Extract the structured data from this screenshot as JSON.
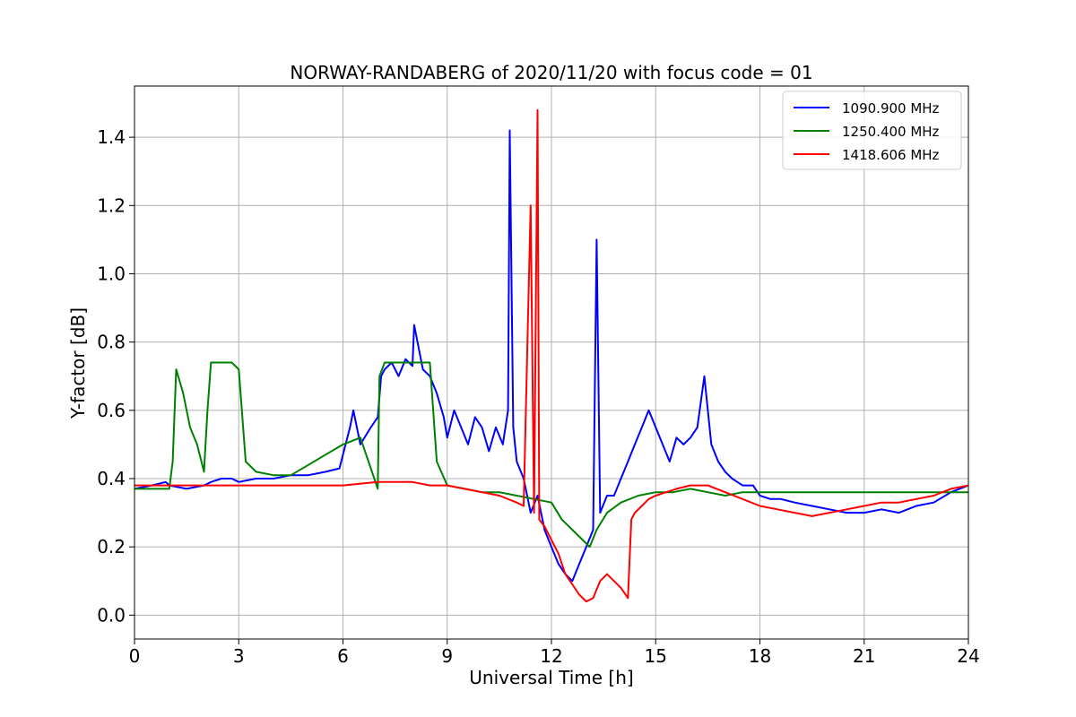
{
  "chart_data": {
    "type": "line",
    "title": "NORWAY-RANDABERG of 2020/11/20 with focus code = 01",
    "xlabel": "Universal Time [h]",
    "ylabel": "Y-factor [dB]",
    "xlim": [
      0,
      24
    ],
    "ylim": [
      -0.07,
      1.55
    ],
    "xticks": [
      0,
      3,
      6,
      9,
      12,
      15,
      18,
      21,
      24
    ],
    "xtick_labels": [
      "0",
      "3",
      "6",
      "9",
      "12",
      "15",
      "18",
      "21",
      "24"
    ],
    "yticks": [
      0.0,
      0.2,
      0.4,
      0.6,
      0.8,
      1.0,
      1.2,
      1.4
    ],
    "ytick_labels": [
      "0.0",
      "0.2",
      "0.4",
      "0.6",
      "0.8",
      "1.0",
      "1.2",
      "1.4"
    ],
    "grid": true,
    "legend_position": "top-right",
    "series": [
      {
        "name": "1090.900 MHz",
        "color": "#0000ff",
        "x": [
          0.0,
          0.5,
          0.9,
          1.0,
          1.5,
          2.0,
          2.2,
          2.5,
          2.8,
          3.0,
          3.5,
          4.0,
          4.5,
          5.0,
          5.5,
          5.9,
          6.0,
          6.2,
          6.3,
          6.5,
          6.8,
          7.0,
          7.1,
          7.2,
          7.4,
          7.6,
          7.8,
          8.0,
          8.05,
          8.3,
          8.5,
          8.7,
          8.9,
          9.0,
          9.2,
          9.4,
          9.6,
          9.8,
          10.0,
          10.2,
          10.4,
          10.6,
          10.75,
          10.8,
          10.9,
          11.0,
          11.2,
          11.4,
          11.6,
          11.8,
          12.0,
          12.2,
          12.4,
          12.6,
          12.8,
          13.0,
          13.2,
          13.3,
          13.4,
          13.6,
          13.8,
          14.0,
          14.2,
          14.4,
          14.6,
          14.8,
          15.0,
          15.2,
          15.4,
          15.6,
          15.8,
          16.0,
          16.2,
          16.4,
          16.6,
          16.8,
          17.0,
          17.2,
          17.5,
          17.8,
          18.0,
          18.3,
          18.6,
          19.0,
          19.5,
          20.0,
          20.5,
          21.0,
          21.5,
          22.0,
          22.5,
          23.0,
          23.5,
          24.0
        ],
        "y": [
          0.37,
          0.38,
          0.39,
          0.38,
          0.37,
          0.38,
          0.39,
          0.4,
          0.4,
          0.39,
          0.4,
          0.4,
          0.41,
          0.41,
          0.42,
          0.43,
          0.47,
          0.55,
          0.6,
          0.5,
          0.55,
          0.58,
          0.7,
          0.72,
          0.74,
          0.7,
          0.75,
          0.73,
          0.85,
          0.72,
          0.7,
          0.65,
          0.58,
          0.52,
          0.6,
          0.55,
          0.5,
          0.58,
          0.55,
          0.48,
          0.55,
          0.5,
          0.6,
          1.42,
          0.55,
          0.45,
          0.4,
          0.3,
          0.35,
          0.25,
          0.2,
          0.15,
          0.12,
          0.1,
          0.15,
          0.2,
          0.25,
          1.1,
          0.3,
          0.35,
          0.35,
          0.4,
          0.45,
          0.5,
          0.55,
          0.6,
          0.55,
          0.5,
          0.45,
          0.52,
          0.5,
          0.52,
          0.55,
          0.7,
          0.5,
          0.45,
          0.42,
          0.4,
          0.38,
          0.38,
          0.35,
          0.34,
          0.34,
          0.33,
          0.32,
          0.31,
          0.3,
          0.3,
          0.31,
          0.3,
          0.32,
          0.33,
          0.36,
          0.38
        ]
      },
      {
        "name": "1250.400 MHz",
        "color": "#008000",
        "x": [
          0.0,
          0.5,
          1.0,
          1.1,
          1.2,
          1.4,
          1.6,
          1.8,
          2.0,
          2.1,
          2.2,
          2.4,
          2.6,
          2.8,
          3.0,
          3.2,
          3.5,
          4.0,
          4.5,
          5.0,
          5.5,
          6.0,
          6.5,
          7.0,
          7.05,
          7.2,
          7.5,
          8.0,
          8.5,
          8.7,
          9.0,
          9.5,
          10.0,
          10.5,
          11.0,
          11.5,
          12.0,
          12.3,
          12.6,
          12.9,
          13.1,
          13.3,
          13.6,
          14.0,
          14.5,
          15.0,
          15.5,
          16.0,
          16.5,
          17.0,
          17.5,
          18.0,
          18.5,
          19.0,
          20.0,
          21.0,
          22.0,
          23.0,
          24.0
        ],
        "y": [
          0.37,
          0.37,
          0.37,
          0.45,
          0.72,
          0.65,
          0.55,
          0.5,
          0.42,
          0.6,
          0.74,
          0.74,
          0.74,
          0.74,
          0.72,
          0.45,
          0.42,
          0.41,
          0.41,
          0.44,
          0.47,
          0.5,
          0.52,
          0.37,
          0.7,
          0.74,
          0.74,
          0.74,
          0.74,
          0.45,
          0.38,
          0.37,
          0.36,
          0.36,
          0.35,
          0.34,
          0.33,
          0.28,
          0.25,
          0.22,
          0.2,
          0.25,
          0.3,
          0.33,
          0.35,
          0.36,
          0.36,
          0.37,
          0.36,
          0.35,
          0.36,
          0.36,
          0.36,
          0.36,
          0.36,
          0.36,
          0.36,
          0.36,
          0.36
        ]
      },
      {
        "name": "1418.606 MHz",
        "color": "#ff0000",
        "x": [
          0.0,
          0.5,
          1.0,
          2.0,
          3.0,
          4.0,
          5.0,
          6.0,
          7.0,
          7.5,
          8.0,
          8.5,
          9.0,
          9.5,
          10.0,
          10.5,
          11.0,
          11.2,
          11.4,
          11.5,
          11.6,
          11.65,
          11.8,
          12.0,
          12.2,
          12.4,
          12.6,
          12.8,
          13.0,
          13.2,
          13.4,
          13.6,
          13.8,
          14.0,
          14.2,
          14.3,
          14.4,
          14.6,
          14.8,
          15.0,
          15.3,
          15.6,
          16.0,
          16.5,
          17.0,
          17.5,
          18.0,
          18.5,
          19.0,
          19.5,
          20.0,
          20.5,
          21.0,
          21.5,
          22.0,
          22.5,
          23.0,
          23.5,
          24.0
        ],
        "y": [
          0.38,
          0.38,
          0.38,
          0.38,
          0.38,
          0.38,
          0.38,
          0.38,
          0.39,
          0.39,
          0.39,
          0.38,
          0.38,
          0.37,
          0.36,
          0.35,
          0.33,
          0.32,
          1.2,
          0.3,
          1.48,
          0.28,
          0.26,
          0.22,
          0.18,
          0.12,
          0.09,
          0.06,
          0.04,
          0.05,
          0.1,
          0.12,
          0.1,
          0.08,
          0.05,
          0.28,
          0.3,
          0.32,
          0.34,
          0.35,
          0.36,
          0.37,
          0.38,
          0.38,
          0.36,
          0.34,
          0.32,
          0.31,
          0.3,
          0.29,
          0.3,
          0.31,
          0.32,
          0.33,
          0.33,
          0.34,
          0.35,
          0.37,
          0.38
        ]
      }
    ]
  }
}
